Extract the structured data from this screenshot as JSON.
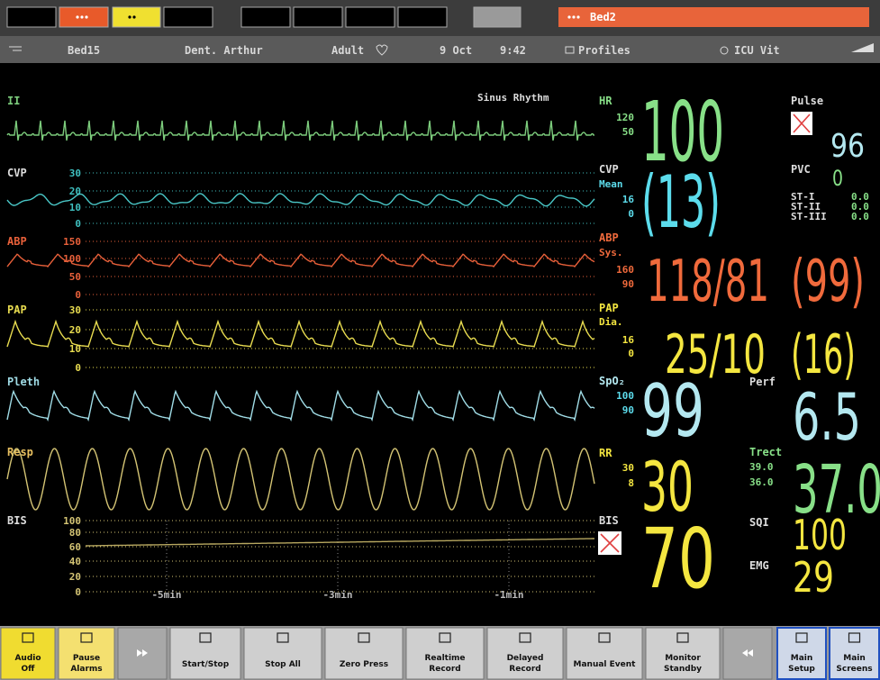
{
  "top_bar": {
    "bed": "Bed2"
  },
  "header": {
    "bed": "Bed15",
    "patient": "Dent. Arthur",
    "category": "Adult",
    "date": "9 Oct",
    "time": "9:42",
    "profiles": "Profiles",
    "profile_name": "ICU Vit"
  },
  "waves": {
    "ecg": {
      "label": "II",
      "rhythm": "Sinus Rhythm"
    },
    "cvp": {
      "label": "CVP",
      "scale": [
        "30",
        "20",
        "10",
        "0"
      ]
    },
    "abp": {
      "label": "ABP",
      "scale": [
        "150",
        "100",
        "50",
        "0"
      ]
    },
    "pap": {
      "label": "PAP",
      "scale": [
        "30",
        "20",
        "10",
        "0"
      ]
    },
    "pleth": {
      "label": "Pleth"
    },
    "resp": {
      "label": "Resp"
    },
    "bis": {
      "label": "BIS",
      "scale": [
        "100",
        "80",
        "60",
        "40",
        "20",
        "0"
      ],
      "time": [
        "-5min",
        "-3min",
        "-1min"
      ]
    }
  },
  "numerics": {
    "hr": {
      "label": "HR",
      "high": "120",
      "low": "50",
      "value": "100"
    },
    "cvp": {
      "label": "CVP",
      "mode": "Mean",
      "high": "16",
      "low": "0",
      "value": "(13)"
    },
    "abp": {
      "label": "ABP",
      "mode": "Sys.",
      "high": "160",
      "low": "90",
      "value": "118/81",
      "mean": "(99)"
    },
    "pap": {
      "label": "PAP",
      "mode": "Dia.",
      "high": "16",
      "low": "0",
      "value": "25/10",
      "mean": "(16)"
    },
    "spo2": {
      "label": "SpO₂",
      "high": "100",
      "low": "90",
      "value": "99"
    },
    "perf": {
      "label": "Perf",
      "value": "6.5"
    },
    "rr": {
      "label": "RR",
      "high": "30",
      "low": "8",
      "value": "30"
    },
    "trect": {
      "label": "Trect",
      "high": "39.0",
      "low": "36.0",
      "value": "37.0"
    },
    "bis": {
      "label": "BIS",
      "value": "70"
    },
    "sqi": {
      "label": "SQI",
      "value": "100"
    },
    "emg": {
      "label": "EMG",
      "value": "29"
    },
    "pulse": {
      "label": "Pulse",
      "value": "96"
    },
    "pvc": {
      "label": "PVC",
      "value": "0"
    },
    "st": [
      {
        "label": "ST-I",
        "value": "0.0"
      },
      {
        "label": "ST-II",
        "value": "0.0"
      },
      {
        "label": "ST-III",
        "value": "0.0"
      }
    ]
  },
  "toolbar": [
    [
      "Audio",
      "Off"
    ],
    [
      "Pause",
      "Alarms"
    ],
    [
      "Start/Stop"
    ],
    [
      "Stop All"
    ],
    [
      "Zero Press"
    ],
    [
      "Realtime",
      "Record"
    ],
    [
      "Delayed",
      "Record"
    ],
    [
      "Manual Event"
    ],
    [
      "Monitor",
      "Standby"
    ],
    [
      "Main",
      "Setup"
    ],
    [
      "Main",
      "Screens"
    ]
  ]
}
